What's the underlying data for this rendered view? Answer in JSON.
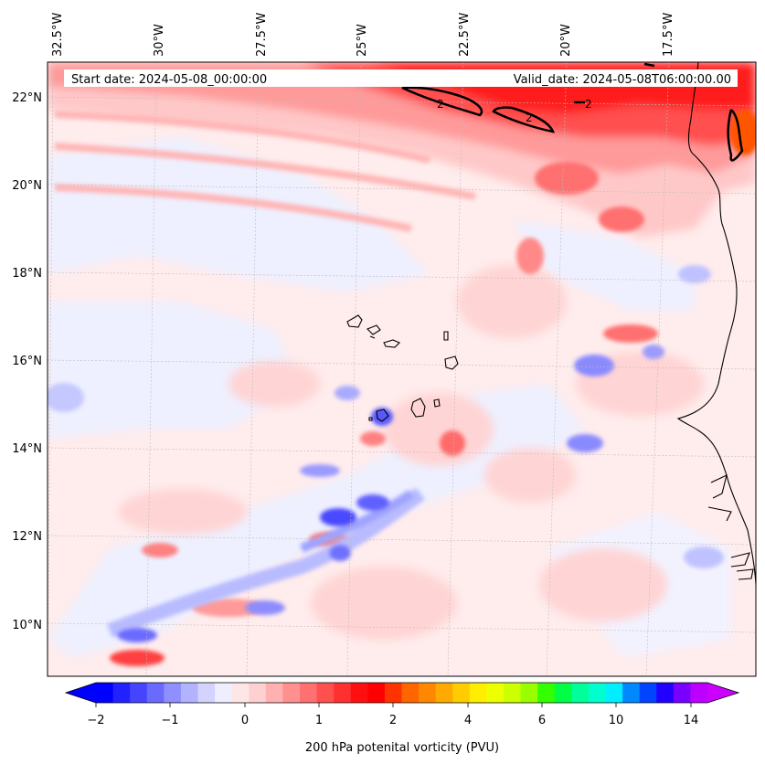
{
  "map": {
    "start_label": "Start date: 2024-05-08_00:00:00",
    "valid_label": "Valid_date: 2024-05-08T06:00:00.00",
    "lon_labels": [
      "32.5°W",
      "30°W",
      "27.5°W",
      "25°W",
      "22.5°W",
      "20°W",
      "17.5°W"
    ],
    "lat_labels": [
      "22°N",
      "20°N",
      "18°N",
      "16°N",
      "14°N",
      "12°N",
      "10°N"
    ],
    "contour_label": "2",
    "colors": {
      "background_low": "#eef0ff",
      "light_pink": "#ffe0e0",
      "pink": "#ffb9b9",
      "salmon": "#ff8c8c",
      "red": "#ff2020",
      "light_blue": "#c7c9ff",
      "blue": "#5c5cff",
      "coast": "#000000"
    }
  },
  "colorbar": {
    "label": "200 hPa potenital vorticity (PVU)",
    "tick_labels": [
      "−2",
      "−1",
      "0",
      "1",
      "2",
      "4",
      "6",
      "10",
      "14"
    ],
    "colors": [
      "#0000ff",
      "#2222ff",
      "#4545ff",
      "#6a6aff",
      "#8f8fff",
      "#b2b2ff",
      "#d3d3ff",
      "#eeeeff",
      "#ffe6e6",
      "#ffd0d0",
      "#ffb0b0",
      "#ff9090",
      "#ff7070",
      "#ff5050",
      "#ff3030",
      "#ff1010",
      "#ff0000",
      "#ff3300",
      "#ff6600",
      "#ff8800",
      "#ffaa00",
      "#ffcc00",
      "#ffee00",
      "#eeff00",
      "#ccff00",
      "#99ff00",
      "#33ff00",
      "#00ff44",
      "#00ff99",
      "#00ffcc",
      "#00eeff",
      "#0088ff",
      "#0044ff",
      "#2200ff",
      "#7700ff",
      "#bb00ff"
    ],
    "under_color": "#0000ff",
    "over_color": "#cc00ff"
  }
}
